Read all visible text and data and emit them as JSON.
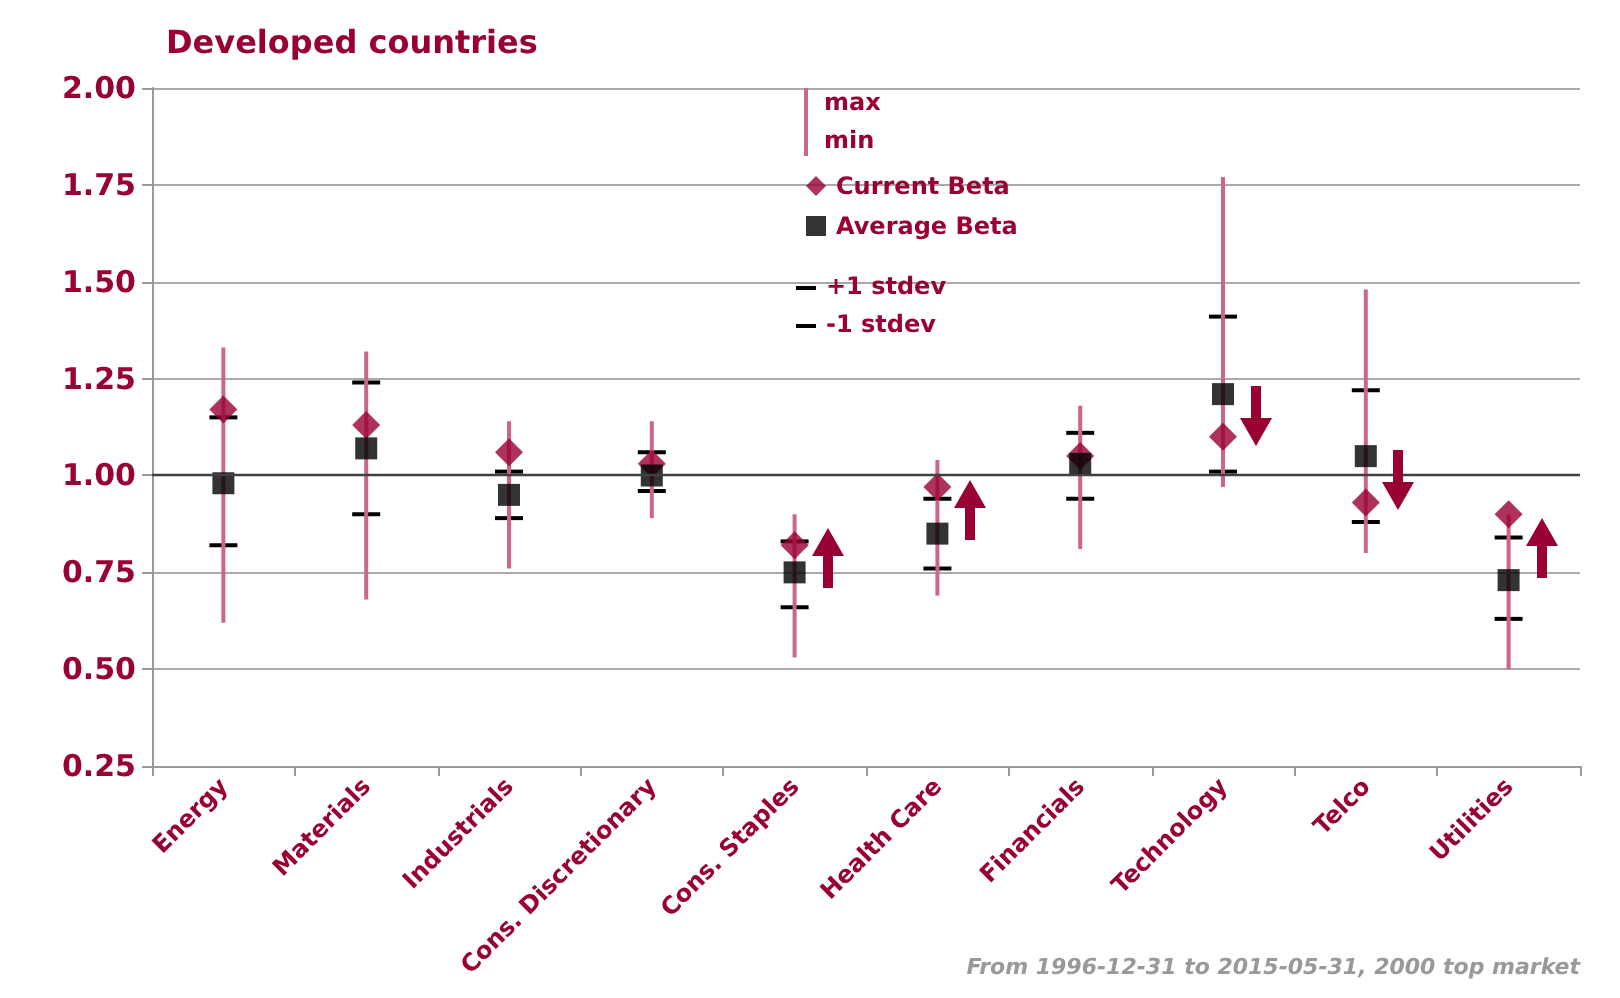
{
  "chart_data": {
    "type": "scatter",
    "title": "Developed countries",
    "categories": [
      "Energy",
      "Materials",
      "Industrials",
      "Cons. Discretionary",
      "Cons. Staples",
      "Health Care",
      "Financials",
      "Technology",
      "Telco",
      "Utilities"
    ],
    "series": [
      {
        "name": "Current Beta",
        "color": "#990033",
        "marker": "diamond",
        "values": [
          1.17,
          1.13,
          1.06,
          1.03,
          0.82,
          0.97,
          1.05,
          1.1,
          0.93,
          0.9
        ],
        "errors": [
          [
            0.62,
            1.33
          ],
          [
            0.68,
            1.32
          ],
          [
            0.76,
            1.14
          ],
          [
            0.89,
            1.14
          ],
          [
            0.53,
            0.9
          ],
          [
            0.69,
            1.04
          ],
          [
            0.81,
            1.18
          ],
          [
            0.97,
            1.77
          ],
          [
            0.8,
            1.48
          ],
          [
            0.5,
            0.9
          ]
        ]
      },
      {
        "name": "Average Beta",
        "color": "#000000",
        "marker": "square",
        "values": [
          0.98,
          1.07,
          0.95,
          1.0,
          0.75,
          0.85,
          1.03,
          1.21,
          1.05,
          0.73
        ],
        "errors": [
          [
            0.82,
            1.15
          ],
          [
            0.9,
            1.24
          ],
          [
            0.89,
            1.01
          ],
          [
            0.96,
            1.06
          ],
          [
            0.66,
            0.83
          ],
          [
            0.76,
            0.94
          ],
          [
            0.94,
            1.11
          ],
          [
            1.01,
            1.41
          ],
          [
            0.88,
            1.22
          ],
          [
            0.63,
            0.84
          ]
        ]
      }
    ],
    "ylim": [
      0.25,
      2.0
    ],
    "yticks": [
      0.25,
      {
        "value": 0.5,
        "label": "0.50"
      },
      0.75,
      {
        "value": 1.0,
        "label": "1.00"
      },
      1.25,
      {
        "value": 1.5,
        "label": "1.50"
      },
      1.75,
      {
        "value": 2.0,
        "label": "2.00"
      }
    ],
    "grid": "y",
    "legend": "top",
    "ref_lines": [
      {
        "axis": "y",
        "value": 1.0,
        "color": "#404040"
      }
    ],
    "annotations": [
      "max",
      "min",
      "+1 stdev",
      "-1 stdev",
      "From 1996-12-31 to 2015-05-31, 2000 top market"
    ]
  }
}
